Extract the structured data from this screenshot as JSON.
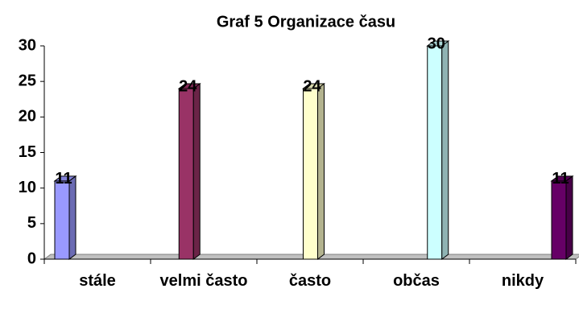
{
  "chart_data": {
    "type": "bar",
    "title": "Graf 5 Organizace času",
    "categories": [
      "stále",
      "velmi často",
      "často",
      "občas",
      "nikdy"
    ],
    "values": [
      11,
      24,
      24,
      30,
      11
    ],
    "colors": [
      "#9999ff",
      "#993366",
      "#ffffcc",
      "#ccffff",
      "#660066"
    ],
    "ylim": [
      0,
      30
    ],
    "yticks": [
      0,
      5,
      10,
      15,
      20,
      25,
      30
    ],
    "grid": false
  }
}
